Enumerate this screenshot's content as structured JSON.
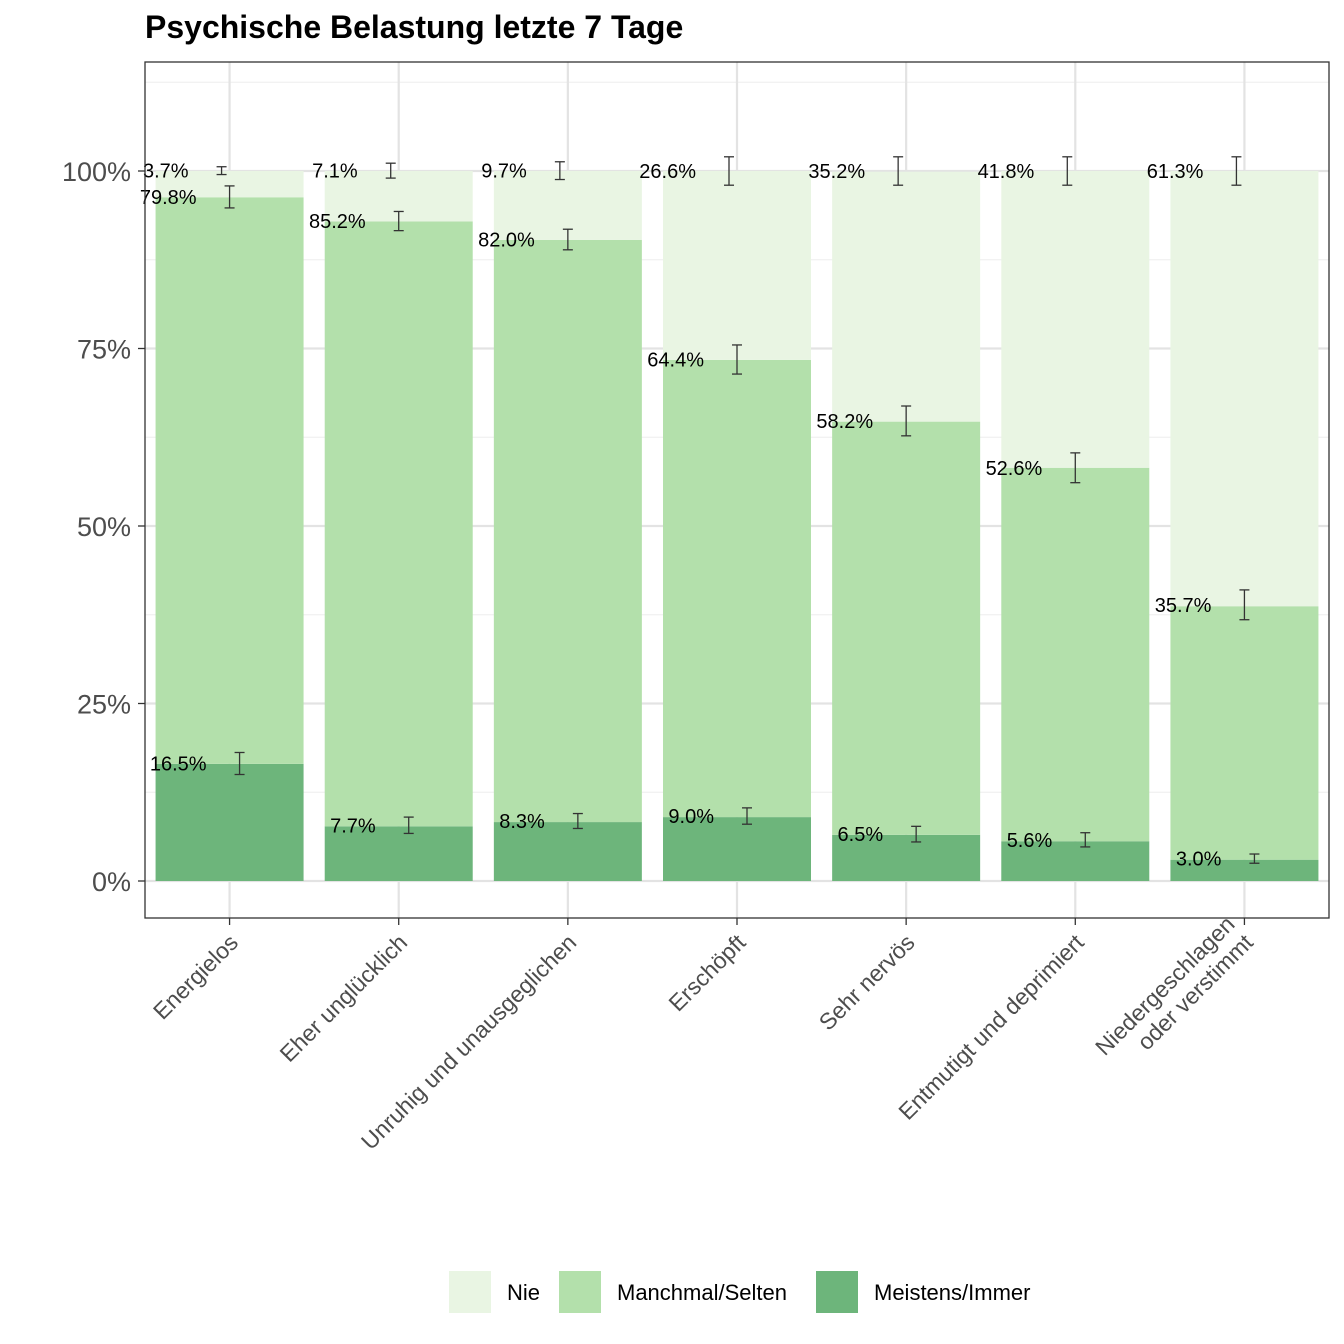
{
  "chart_data": {
    "type": "bar",
    "stacked": true,
    "title": "Psychische Belastung letzte 7 Tage",
    "xlabel": "",
    "ylabel": "",
    "ylim": [
      -5,
      115
    ],
    "y_ticks": [
      0,
      25,
      50,
      75,
      100
    ],
    "y_tick_labels": [
      "0%",
      "25%",
      "50%",
      "75%",
      "100%"
    ],
    "grid": true,
    "legend_position": "bottom",
    "categories": [
      [
        "Energielos"
      ],
      [
        "Eher unglücklich"
      ],
      [
        "Unruhig und unausgeglichen"
      ],
      [
        "Erschöpft"
      ],
      [
        "Sehr nervös"
      ],
      [
        "Entmutigt und deprimiert"
      ],
      [
        "Niedergeschlagen",
        "oder verstimmt"
      ]
    ],
    "series": [
      {
        "name": "Nie",
        "color": "#e9f5e3",
        "values": [
          3.7,
          7.1,
          9.7,
          26.6,
          35.2,
          41.8,
          61.3
        ],
        "labels": [
          "3.7%",
          "7.1%",
          "9.7%",
          "26.6%",
          "35.2%",
          "41.8%",
          "61.3%"
        ],
        "err_low": [
          99.5,
          99.0,
          98.8,
          98.0,
          98.0,
          98.0,
          98.0
        ],
        "err_high": [
          100.6,
          101.1,
          101.3,
          102.0,
          102.0,
          102.0,
          102.0
        ]
      },
      {
        "name": "Manchmal/Selten",
        "color": "#b3e0ab",
        "values": [
          79.8,
          85.2,
          82.0,
          64.4,
          58.2,
          52.6,
          35.7
        ],
        "labels": [
          "79.8%",
          "85.2%",
          "82.0%",
          "64.4%",
          "58.2%",
          "52.6%",
          "35.7%"
        ],
        "err_low": [
          94.8,
          91.6,
          88.9,
          71.4,
          62.7,
          56.1,
          36.8
        ],
        "err_high": [
          97.9,
          94.3,
          91.8,
          75.5,
          66.9,
          60.3,
          41.0
        ]
      },
      {
        "name": "Meistens/Immer",
        "color": "#6db57b",
        "values": [
          16.5,
          7.7,
          8.3,
          9.0,
          6.5,
          5.6,
          3.0
        ],
        "labels": [
          "16.5%",
          "7.7%",
          "8.3%",
          "9.0%",
          "6.5%",
          "5.6%",
          "3.0%"
        ],
        "err_low": [
          15.0,
          6.7,
          7.4,
          8.0,
          5.5,
          4.8,
          2.5
        ],
        "err_high": [
          18.1,
          9.0,
          9.5,
          10.3,
          7.7,
          6.8,
          3.8
        ]
      }
    ]
  }
}
